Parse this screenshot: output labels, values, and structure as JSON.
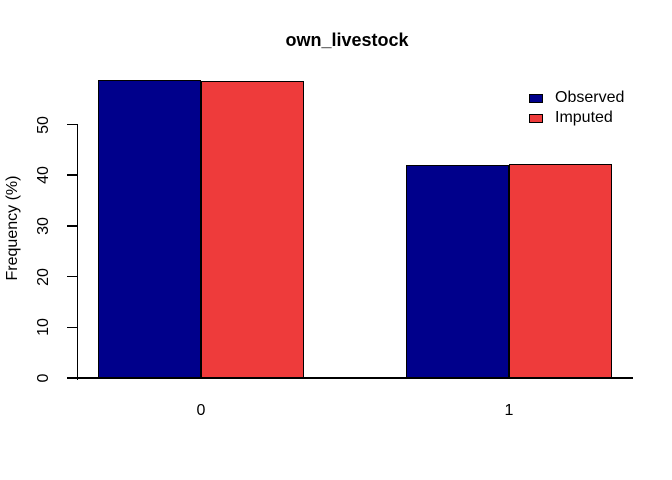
{
  "chart_data": {
    "type": "bar",
    "title": "own_livestock",
    "xlabel": "",
    "ylabel": "Frequency (%)",
    "categories": [
      "0",
      "1"
    ],
    "series": [
      {
        "name": "Observed",
        "color": "#00008B",
        "values": [
          58.8,
          42.1
        ]
      },
      {
        "name": "Imputed",
        "color": "#EE3B3B",
        "values": [
          58.5,
          42.3
        ]
      }
    ],
    "y_ticks": [
      0,
      10,
      20,
      30,
      40,
      50
    ],
    "ylim": [
      0,
      59
    ],
    "grid": false,
    "legend_position": "top-right",
    "bar_border_color": "#000000",
    "axis_color": "#000000",
    "background": "#FFFFFF"
  }
}
